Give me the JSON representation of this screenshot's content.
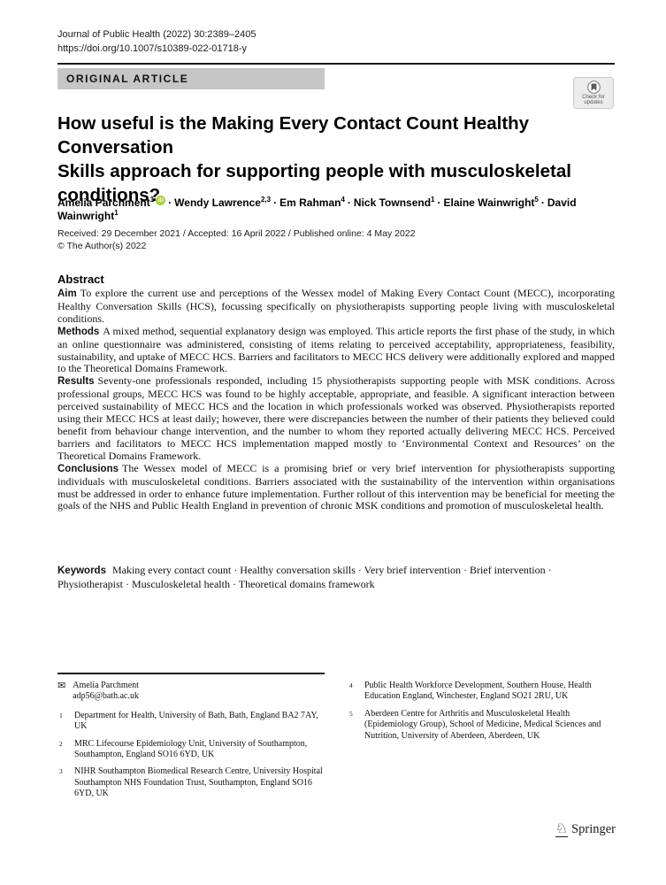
{
  "header": {
    "journal_line": "Journal of Public Health  (2022) 30:2389–2405",
    "doi": "https://doi.org/10.1007/s10389-022-01718-y",
    "article_type": "ORIGINAL ARTICLE",
    "badge_line1": "Check for",
    "badge_line2": "updates"
  },
  "title_lines": [
    "How useful is the Making Every Contact Count Healthy Conversation",
    "Skills approach for supporting people with musculoskeletal",
    "conditions?"
  ],
  "authors": [
    {
      "name": "Amelia Parchment",
      "sup": "1",
      "orcid": true
    },
    {
      "name": "Wendy Lawrence",
      "sup": "2,3",
      "orcid": false
    },
    {
      "name": "Em Rahman",
      "sup": "4",
      "orcid": false
    },
    {
      "name": "Nick Townsend",
      "sup": "1",
      "orcid": false
    },
    {
      "name": "Elaine Wainwright",
      "sup": "5",
      "orcid": false
    },
    {
      "name": "David Wainwright",
      "sup": "1",
      "orcid": false
    }
  ],
  "author_separator": "·",
  "dates": "Received: 29 December 2021 / Accepted: 16 April 2022  / Published online: 4  May 2022",
  "copyright": "© The Author(s) 2022",
  "abstract": {
    "heading": "Abstract",
    "sections": [
      {
        "label": "Aim",
        "text": "To explore the current use and perceptions of the Wessex model of Making Every Contact Count (MECC), incorporating Healthy Conversation Skills (HCS), focussing specifically on physiotherapists supporting people living with musculoskeletal conditions."
      },
      {
        "label": "Methods",
        "text": "A mixed method, sequential explanatory design was employed. This article reports the first phase of the study, in which an online questionnaire was administered, consisting of items relating to perceived acceptability, appropriateness, feasibility, sustainability, and uptake of MECC HCS. Barriers and facilitators to MECC HCS delivery were additionally explored and mapped to the Theoretical Domains Framework."
      },
      {
        "label": "Results",
        "text": "Seventy-one professionals responded, including 15 physiotherapists supporting people with MSK conditions. Across professional groups, MECC HCS was found to be highly acceptable, appropriate, and feasible. A significant interaction between perceived sustainability of MECC HCS and the location in which professionals worked was observed. Physiotherapists reported using their MECC HCS at least daily; however, there were discrepancies between the number of their patients they believed could benefit from behaviour change intervention, and the number to whom they reported actually delivering MECC HCS. Perceived barriers and facilitators to MECC HCS implementation mapped mostly to ‘Environmental Context and Resources’ on the Theoretical Domains Framework."
      },
      {
        "label": "Conclusions",
        "text": "The Wessex model of MECC is a promising brief or very brief intervention for physiotherapists supporting individuals with musculoskeletal conditions. Barriers associated with the sustainability of the intervention within organisations must be addressed in order to enhance future implementation. Further rollout of this intervention may be beneficial for meeting the goals of the NHS and Public Health England in prevention of chronic MSK conditions and promotion of musculoskeletal health."
      }
    ]
  },
  "keywords": {
    "label": "Keywords",
    "items": [
      "Making every contact count",
      "Healthy conversation skills",
      "Very brief intervention",
      "Brief intervention",
      "Physiotherapist",
      "Musculoskeletal health",
      "Theoretical domains framework"
    ],
    "separator": " · "
  },
  "footnotes": {
    "correspondence": {
      "name": "Amelia Parchment",
      "email": "adp56@bath.ac.uk"
    },
    "left_affiliations": [
      {
        "num": "1",
        "text": "Department for Health, University of Bath, Bath, England BA2 7AY, UK"
      },
      {
        "num": "2",
        "text": "MRC Lifecourse Epidemiology Unit, University of Southampton, Southampton, England SO16 6YD, UK"
      },
      {
        "num": "3",
        "text": "NIHR Southampton Biomedical Research Centre, University Hospital Southampton NHS Foundation Trust, Southampton, England SO16 6YD, UK"
      }
    ],
    "right_affiliations": [
      {
        "num": "4",
        "text": "Public Health Workforce Development, Southern House, Health Education England, Winchester, England SO21 2RU, UK"
      },
      {
        "num": "5",
        "text": "Aberdeen Centre for Arthritis and Musculoskeletal Health (Epidemiology Group), School of Medicine, Medical Sciences and Nutrition, University of Aberdeen, Aberdeen, UK"
      }
    ]
  },
  "publisher": {
    "name": "Springer"
  },
  "colors": {
    "banner_gray": "#c6c6c6",
    "orcid_green": "#a6ce39",
    "rule_black": "#1a1a1a"
  }
}
